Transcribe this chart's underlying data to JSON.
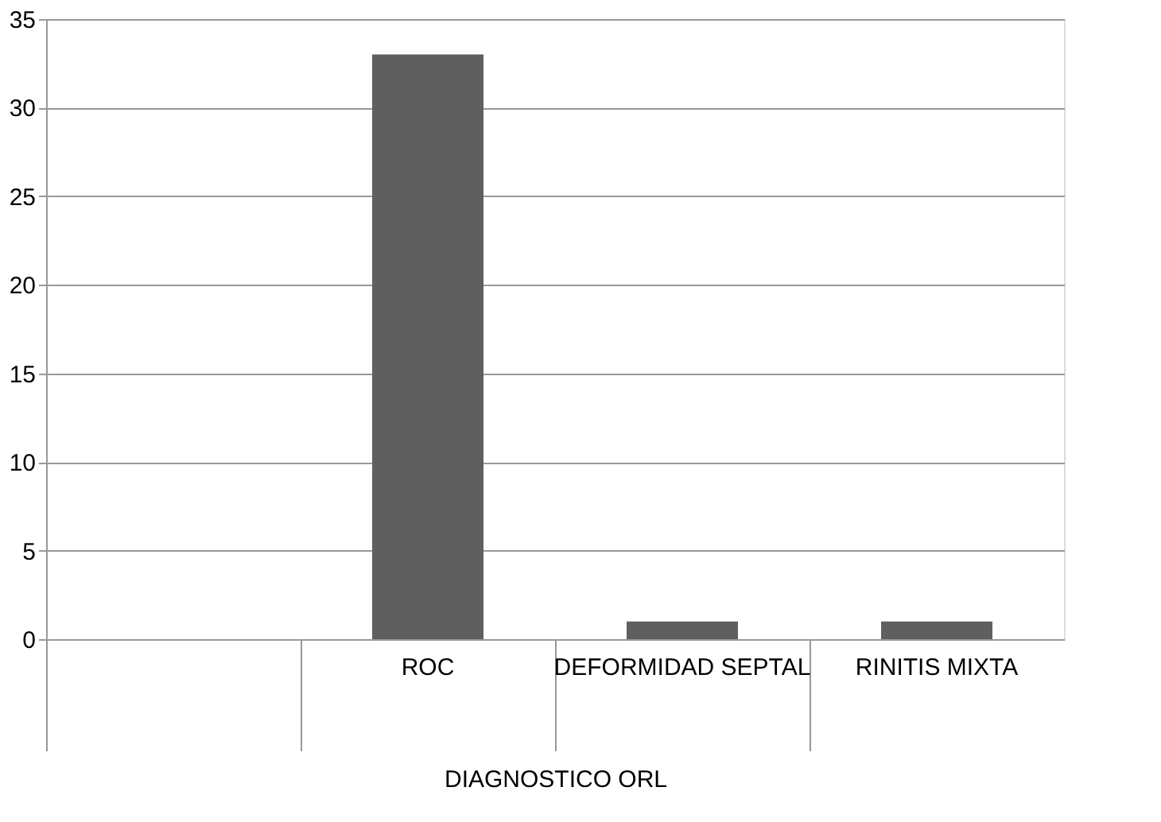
{
  "chart_data": {
    "type": "bar",
    "xlabel": "DIAGNOSTICO ORL",
    "categories": [
      null,
      "ROC",
      "DEFORMIDAD SEPTAL",
      "RINITIS MIXTA"
    ],
    "values": [
      null,
      33,
      1,
      1
    ],
    "color": "#5f5f5f",
    "ylim": [
      0,
      35
    ],
    "yticks": [
      0,
      5,
      10,
      15,
      20,
      25,
      30,
      35
    ],
    "grid": "y"
  }
}
